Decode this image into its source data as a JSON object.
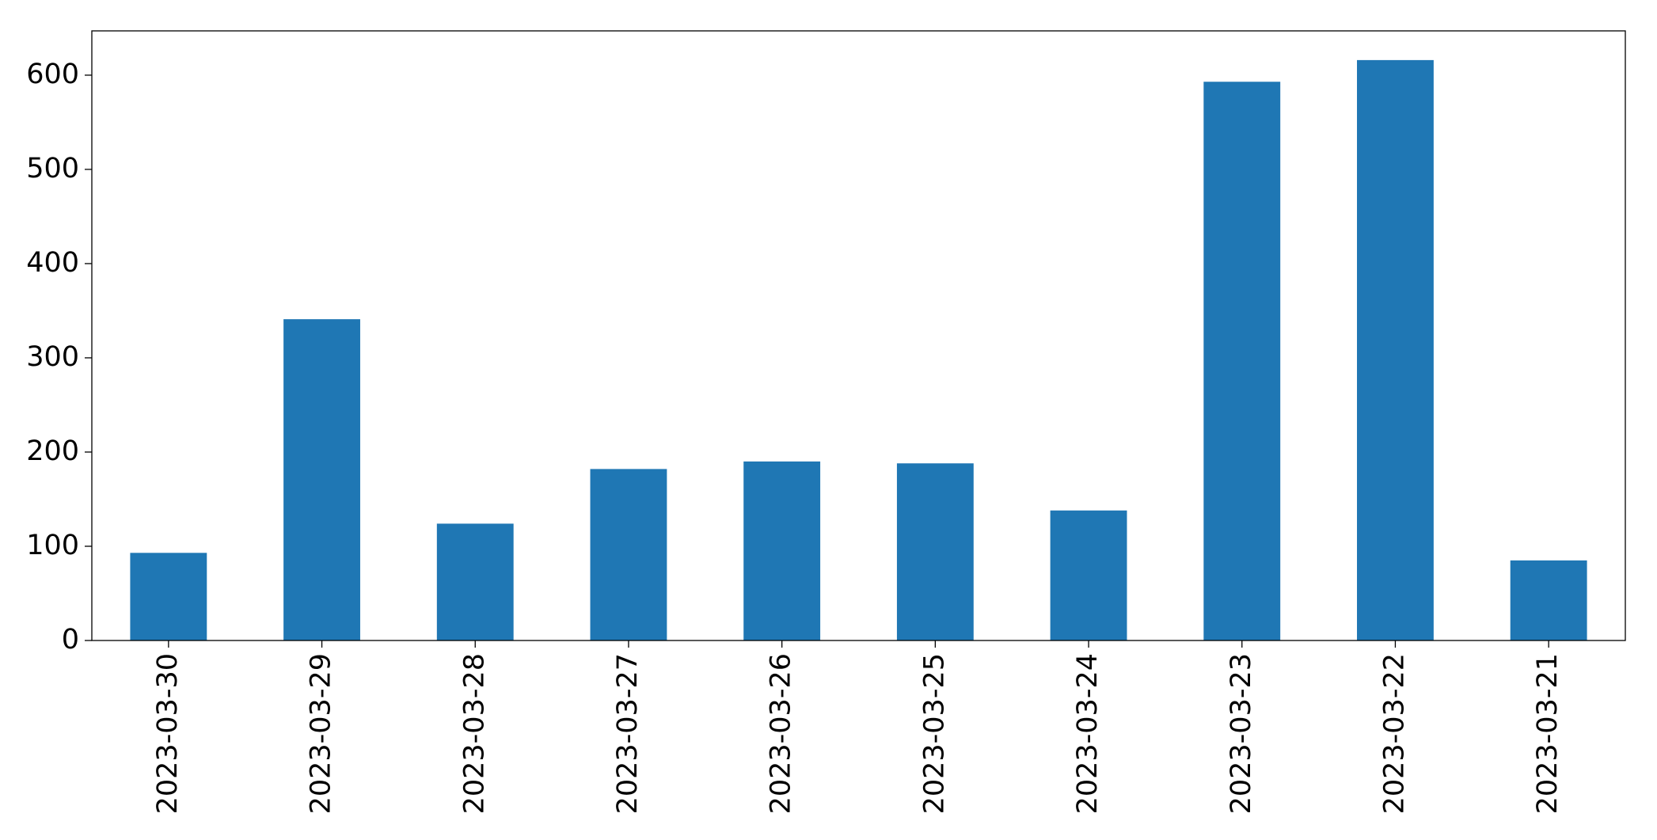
{
  "chart_data": {
    "type": "bar",
    "categories": [
      "2023-03-30",
      "2023-03-29",
      "2023-03-28",
      "2023-03-27",
      "2023-03-26",
      "2023-03-25",
      "2023-03-24",
      "2023-03-23",
      "2023-03-22",
      "2023-03-21"
    ],
    "values": [
      93,
      341,
      124,
      182,
      190,
      188,
      138,
      593,
      616,
      85
    ],
    "color": "#1f77b4",
    "ylim": [
      0,
      647
    ],
    "yticks": [
      0,
      100,
      200,
      300,
      400,
      500,
      600
    ],
    "grid": false
  }
}
